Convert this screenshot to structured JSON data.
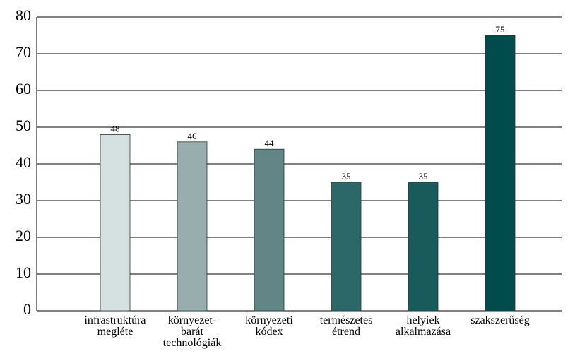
{
  "chart_data": {
    "type": "bar",
    "categories": [
      "infrastruktúra\nmegléte",
      "környezet-\nbarát\ntechnológiák",
      "környezeti\nkódex",
      "természetes\nétrend",
      "helyiek\nalkalmazása",
      "szakszerűség"
    ],
    "values": [
      48,
      46,
      44,
      35,
      35,
      75
    ],
    "colors": [
      "#d5e0e0",
      "#98adae",
      "#628686",
      "#2d6868",
      "#195a5a",
      "#004b4b"
    ],
    "ylim": [
      0,
      80
    ],
    "yticks": [
      0,
      10,
      20,
      30,
      40,
      50,
      60,
      70,
      80
    ],
    "grid": true
  }
}
